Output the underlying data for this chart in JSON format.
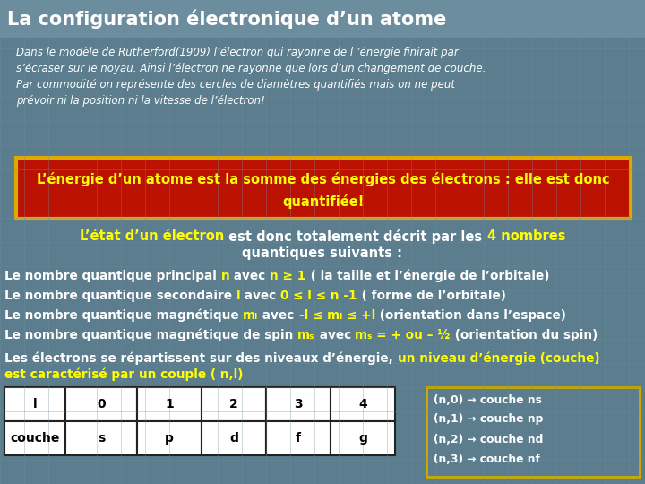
{
  "title": "La configuration électronique d’un atome",
  "bg_color": "#5b7d8e",
  "title_bg": "#6b8d9e",
  "title_color": "#ffffff",
  "subtitle_text": "Dans le modèle de Rutherford(1909) l’électron qui rayonne de l ’énergie finirait par\ns’écraser sur le noyau. Ainsi l’électron ne rayonne que lors d’un changement de couche.\nPar commodité on représente des cercles de diamètres quantifiés mais on ne peut\nprévoir ni la position ni la vitesse de l’électron!",
  "subtitle_color": "#ffffff",
  "box1_text_line1": "L’énergie d’un atome est la somme des énergies des électrons : elle est donc",
  "box1_text_line2": "quantifiée!",
  "box1_bg": "#bb1100",
  "box1_border": "#ddaa00",
  "box1_text_color": "#ffff00",
  "yellow": "#ffff00",
  "white": "#ffffff",
  "text_color": "#ffffff",
  "table_headers": [
    "l",
    "0",
    "1",
    "2",
    "3",
    "4"
  ],
  "table_row2": [
    "couche",
    "s",
    "p",
    "d",
    "f",
    "g"
  ],
  "box2_lines": [
    "(n,0) → couche ns",
    "(n,1) → couche np",
    "(n,2) → couche nd",
    "(n,3) → couche nf"
  ],
  "box2_border": "#ccaa00",
  "grid_color": "#6b8d9e"
}
